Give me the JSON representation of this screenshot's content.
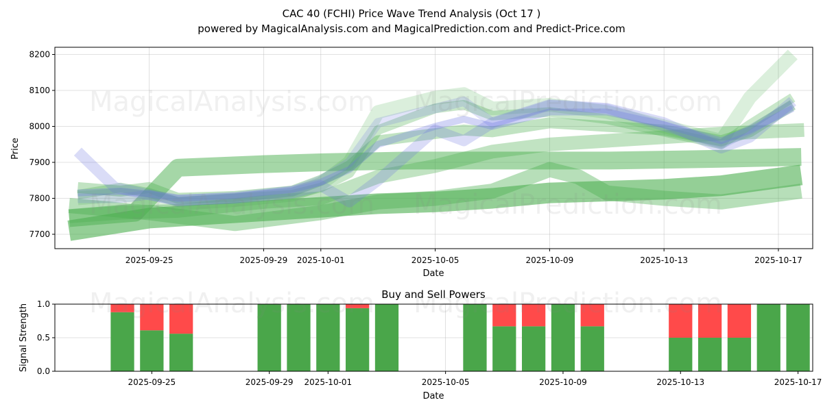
{
  "title_line1": "CAC 40 (FCHI) Price Wave Trend Analysis (Oct 17 )",
  "title_line2": "powered by MagicalAnalysis.com and MagicalPrediction.com and Predict-Price.com",
  "watermarks": [
    "MagicalAnalysis.com",
    "MagicalPrediction.com"
  ],
  "colors": {
    "buy": "#4aa64a",
    "sell": "#ff4a4a",
    "band_green": "#4caf50",
    "band_blue": "#6b74e0"
  },
  "chart_data": [
    {
      "type": "area",
      "title": "",
      "xlabel": "Date",
      "ylabel": "Price",
      "ylim": [
        7660,
        8220
      ],
      "xlim": [
        -3.3,
        23.2
      ],
      "x_ticks": [
        {
          "x": 0,
          "label": "2025-09-25"
        },
        {
          "x": 4,
          "label": "2025-09-29"
        },
        {
          "x": 6,
          "label": "2025-10-01"
        },
        {
          "x": 10,
          "label": "2025-10-05"
        },
        {
          "x": 14,
          "label": "2025-10-09"
        },
        {
          "x": 18,
          "label": "2025-10-13"
        },
        {
          "x": 22,
          "label": "2025-10-17"
        }
      ],
      "y_ticks": [
        7700,
        7800,
        7900,
        8000,
        8100,
        8200
      ],
      "grid": true,
      "series": [
        {
          "name": "wave-band-1",
          "color": "green",
          "opacity": 0.6,
          "width": 30,
          "x": [
            -2.8,
            0,
            3,
            6,
            8,
            10,
            12,
            14,
            16,
            18,
            20,
            22.8
          ],
          "y": [
            7710,
            7745,
            7760,
            7775,
            7785,
            7790,
            7800,
            7815,
            7820,
            7825,
            7835,
            7865
          ]
        },
        {
          "name": "wave-band-2",
          "color": "green",
          "opacity": 0.5,
          "width": 26,
          "x": [
            -2.8,
            -0.5,
            1,
            4,
            6,
            9,
            12,
            13.5,
            14.5,
            16,
            20,
            22.8
          ],
          "y": [
            7745,
            7760,
            7885,
            7895,
            7900,
            7905,
            7905,
            7905,
            7905,
            7905,
            7910,
            7915
          ]
        },
        {
          "name": "wave-band-3",
          "color": "green",
          "opacity": 0.4,
          "width": 22,
          "x": [
            -2.8,
            0,
            3,
            6,
            8,
            10,
            12,
            14,
            15,
            16,
            18,
            20,
            22.8
          ],
          "y": [
            7780,
            7760,
            7730,
            7760,
            7790,
            7800,
            7820,
            7880,
            7860,
            7815,
            7800,
            7790,
            7820
          ]
        },
        {
          "name": "wave-band-4",
          "color": "green",
          "opacity": 0.35,
          "width": 20,
          "x": [
            -2.8,
            -1,
            1,
            4,
            6,
            7,
            8,
            10,
            12,
            14,
            18,
            20,
            22.9
          ],
          "y": [
            7750,
            7760,
            7765,
            7790,
            7800,
            7830,
            7860,
            7890,
            7930,
            7950,
            7970,
            7980,
            7990
          ]
        },
        {
          "name": "wave-band-5",
          "color": "green",
          "opacity": 0.35,
          "width": 16,
          "x": [
            -2.5,
            -1,
            0,
            1,
            3,
            5,
            6,
            7,
            8,
            10,
            11,
            12,
            14,
            16,
            18,
            20,
            21,
            22.5
          ],
          "y": [
            7830,
            7820,
            7830,
            7800,
            7805,
            7820,
            7850,
            7890,
            7960,
            7980,
            7990,
            7985,
            8010,
            8000,
            7990,
            7960,
            7985,
            8060
          ]
        },
        {
          "name": "wave-band-6",
          "color": "green",
          "opacity": 0.3,
          "width": 14,
          "x": [
            -2.5,
            -1,
            0,
            1,
            3,
            5,
            6,
            7,
            8,
            10,
            11,
            12,
            14,
            16,
            18,
            20,
            21,
            22.5
          ],
          "y": [
            7810,
            7830,
            7815,
            7790,
            7800,
            7810,
            7830,
            7870,
            7990,
            8050,
            8060,
            8030,
            8040,
            8020,
            7985,
            7950,
            8005,
            8080
          ]
        },
        {
          "name": "wave-band-7",
          "color": "green",
          "opacity": 0.2,
          "width": 20,
          "x": [
            -2.5,
            -1,
            0,
            1,
            3,
            5,
            6,
            7,
            8,
            10,
            11,
            12,
            14,
            16,
            18,
            20,
            21,
            22.5
          ],
          "y": [
            7800,
            7810,
            7800,
            7785,
            7795,
            7810,
            7840,
            7900,
            8040,
            8080,
            8090,
            8050,
            8060,
            8040,
            8000,
            7960,
            8080,
            8200
          ]
        },
        {
          "name": "wave-band-8",
          "color": "blue",
          "opacity": 0.25,
          "width": 16,
          "x": [
            -2.5,
            -1.2,
            0,
            1,
            3,
            5,
            6,
            7,
            8,
            10,
            11,
            12,
            14,
            16,
            18,
            20,
            21,
            22.5
          ],
          "y": [
            7930,
            7830,
            7810,
            7795,
            7800,
            7815,
            7835,
            7790,
            7850,
            7990,
            7960,
            8010,
            8060,
            8050,
            8010,
            7940,
            7970,
            8070
          ]
        },
        {
          "name": "wave-band-9",
          "color": "blue",
          "opacity": 0.2,
          "width": 14,
          "x": [
            -2.5,
            -1,
            0,
            1,
            3,
            5,
            6,
            7,
            8,
            10,
            11,
            12,
            14,
            16,
            18,
            20,
            21,
            22.5
          ],
          "y": [
            7800,
            7800,
            7810,
            7790,
            7800,
            7820,
            7850,
            7900,
            8010,
            8050,
            8070,
            8010,
            8060,
            8050,
            8000,
            7950,
            7990,
            8060
          ]
        },
        {
          "name": "wave-band-10",
          "color": "blue",
          "opacity": 0.3,
          "width": 10,
          "x": [
            -2.5,
            -1,
            0,
            1,
            3,
            5,
            6,
            7,
            8,
            10,
            11,
            12,
            14,
            16,
            18,
            20,
            21,
            22.5
          ],
          "y": [
            7815,
            7820,
            7812,
            7800,
            7808,
            7825,
            7845,
            7880,
            7950,
            8000,
            8020,
            8000,
            8040,
            8040,
            8005,
            7960,
            7990,
            8050
          ]
        }
      ]
    },
    {
      "type": "bar",
      "title": "Buy and Sell Powers",
      "xlabel": "Date",
      "ylabel": "Signal Strength",
      "ylim": [
        0,
        1
      ],
      "xlim": [
        -3.3,
        22.5
      ],
      "y_ticks": [
        0.0,
        0.5,
        1.0
      ],
      "y_tick_labels": [
        "0.0",
        "0.5",
        "1.0"
      ],
      "x_ticks": [
        {
          "x": 0,
          "label": "2025-09-25"
        },
        {
          "x": 4,
          "label": "2025-09-29"
        },
        {
          "x": 6,
          "label": "2025-10-01"
        },
        {
          "x": 10,
          "label": "2025-10-05"
        },
        {
          "x": 14,
          "label": "2025-10-09"
        },
        {
          "x": 18,
          "label": "2025-10-13"
        },
        {
          "x": 22,
          "label": "2025-10-17"
        }
      ],
      "grid": true,
      "bars": [
        {
          "x": -1,
          "buy": 0.88,
          "sell": 0.12
        },
        {
          "x": 0,
          "buy": 0.61,
          "sell": 0.39
        },
        {
          "x": 1,
          "buy": 0.56,
          "sell": 0.44
        },
        {
          "x": 4,
          "buy": 1.0,
          "sell": 0.0
        },
        {
          "x": 5,
          "buy": 1.0,
          "sell": 0.0
        },
        {
          "x": 6,
          "buy": 1.0,
          "sell": 0.0
        },
        {
          "x": 7,
          "buy": 0.94,
          "sell": 0.06
        },
        {
          "x": 8,
          "buy": 1.0,
          "sell": 0.0
        },
        {
          "x": 11,
          "buy": 1.0,
          "sell": 0.0
        },
        {
          "x": 12,
          "buy": 0.67,
          "sell": 0.33
        },
        {
          "x": 13,
          "buy": 0.67,
          "sell": 0.33
        },
        {
          "x": 14,
          "buy": 1.0,
          "sell": 0.0
        },
        {
          "x": 15,
          "buy": 0.67,
          "sell": 0.33
        },
        {
          "x": 18,
          "buy": 0.5,
          "sell": 0.5
        },
        {
          "x": 19,
          "buy": 0.5,
          "sell": 0.5
        },
        {
          "x": 20,
          "buy": 0.5,
          "sell": 0.5
        },
        {
          "x": 21,
          "buy": 1.0,
          "sell": 0.0
        },
        {
          "x": 22,
          "buy": 1.0,
          "sell": 0.0
        }
      ]
    }
  ]
}
